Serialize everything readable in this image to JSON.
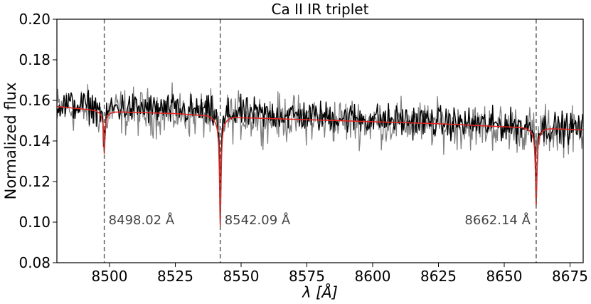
{
  "chart_data": {
    "type": "line",
    "title": "Ca II IR triplet",
    "xlabel": "λ [Å]",
    "ylabel": "Normalized flux",
    "xlim": [
      8480,
      8680
    ],
    "ylim": [
      0.08,
      0.2
    ],
    "x_ticks": [
      8500,
      8525,
      8550,
      8575,
      8600,
      8625,
      8650,
      8675
    ],
    "y_ticks": [
      "0.08",
      "0.10",
      "0.12",
      "0.14",
      "0.16",
      "0.18",
      "0.20"
    ],
    "grid": false,
    "colors": {
      "observed_a": "#000000",
      "observed_b": "#808080",
      "model": "#e8231e",
      "marker": "#666666",
      "annotation": "#444444"
    },
    "annotations": [
      {
        "x": 8498.02,
        "label": "8498.02 Å"
      },
      {
        "x": 8542.09,
        "label": "8542.09 Å"
      },
      {
        "x": 8662.14,
        "label": "8662.14 Å"
      }
    ],
    "series": [
      {
        "style": "black-noisy",
        "continuum": [
          [
            8480,
            0.158
          ],
          [
            8680,
            0.146
          ]
        ],
        "noise": 0.006,
        "lines": [
          {
            "x": 8498.02,
            "min": 0.136
          },
          {
            "x": 8542.09,
            "min": 0.112
          },
          {
            "x": 8662.14,
            "min": 0.126
          }
        ]
      },
      {
        "style": "gray-noisy",
        "continuum": [
          [
            8480,
            0.156
          ],
          [
            8680,
            0.145
          ]
        ],
        "noise": 0.009,
        "lines": [
          {
            "x": 8498.02,
            "min": 0.138
          },
          {
            "x": 8542.09,
            "min": 0.12
          },
          {
            "x": 8662.14,
            "min": 0.132
          }
        ]
      },
      {
        "style": "red-model",
        "continuum": [
          [
            8480,
            0.157
          ],
          [
            8500,
            0.1545
          ],
          [
            8525,
            0.1535
          ],
          [
            8550,
            0.1515
          ],
          [
            8575,
            0.1505
          ],
          [
            8600,
            0.1495
          ],
          [
            8625,
            0.1485
          ],
          [
            8650,
            0.147
          ],
          [
            8680,
            0.1455
          ]
        ],
        "lines": [
          {
            "x": 8498.02,
            "min": 0.135
          },
          {
            "x": 8542.09,
            "min": 0.101
          },
          {
            "x": 8662.14,
            "min": 0.11
          }
        ]
      }
    ]
  }
}
